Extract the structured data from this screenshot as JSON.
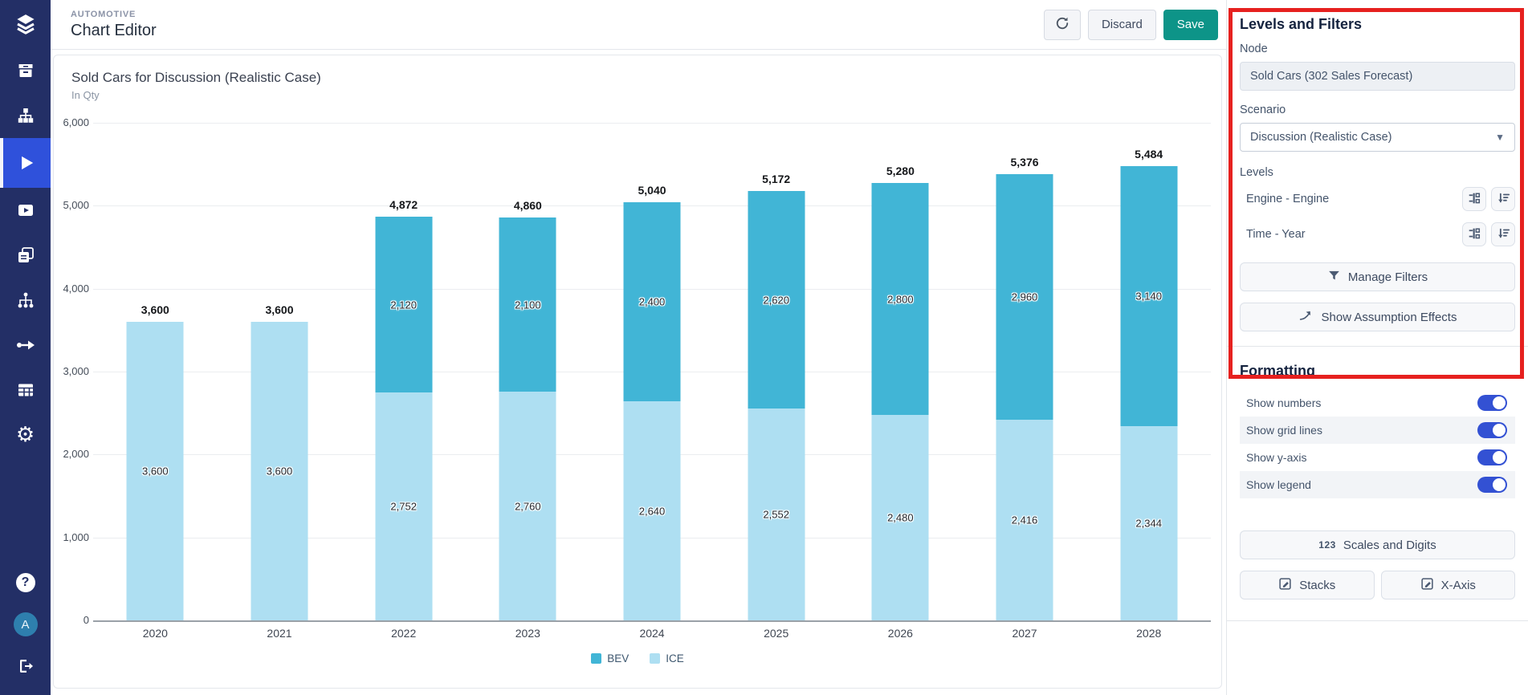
{
  "header": {
    "app_label": "AUTOMOTIVE",
    "title": "Chart Editor",
    "refresh_icon": "refresh-icon",
    "discard_label": "Discard",
    "save_label": "Save",
    "save_color": "#0d9488"
  },
  "sidebar": {
    "background_color": "#232f66",
    "active_color": "#2f51db",
    "top_icons": [
      "logo",
      "archive",
      "sitemap",
      "run",
      "video",
      "pages",
      "network",
      "flow",
      "table",
      "gear"
    ],
    "active_icon": "run",
    "bottom_icons": [
      "help",
      "avatar",
      "logout"
    ],
    "avatar_initial": "A"
  },
  "chart_data": {
    "type": "bar",
    "stacked": true,
    "title": "Sold Cars for Discussion (Realistic Case)",
    "subtitle": "In Qty",
    "categories": [
      "2020",
      "2021",
      "2022",
      "2023",
      "2024",
      "2025",
      "2026",
      "2027",
      "2028"
    ],
    "series": [
      {
        "name": "BEV",
        "color": "#41b5d6",
        "values": [
          0,
          0,
          2120,
          2100,
          2400,
          2620,
          2800,
          2960,
          3140
        ]
      },
      {
        "name": "ICE",
        "color": "#aedff2",
        "values": [
          3600,
          3600,
          2752,
          2760,
          2640,
          2552,
          2480,
          2416,
          2344
        ]
      }
    ],
    "totals": [
      3600,
      3600,
      4872,
      4860,
      5040,
      5172,
      5280,
      5376,
      5484
    ],
    "ylim": [
      0,
      6000
    ],
    "ytick_step": 1000,
    "grid": true,
    "show_numbers": true,
    "show_y_axis": true,
    "legend_position": "bottom"
  },
  "panel": {
    "highlight_color": "#e6211f",
    "title": "Levels and Filters",
    "node_label": "Node",
    "node_value": "Sold Cars (302 Sales Forecast)",
    "scenario_label": "Scenario",
    "scenario_value": "Discussion (Realistic Case)",
    "levels_label": "Levels",
    "levels": [
      "Engine - Engine",
      "Time - Year"
    ],
    "level_row_icons": [
      "level-settings-icon",
      "sort-descending-icon"
    ],
    "manage_filters_label": "Manage Filters",
    "show_assumption_effects_label": "Show Assumption Effects",
    "formatting": {
      "title": "Formatting",
      "toggles": [
        {
          "label": "Show numbers",
          "on": true,
          "striped": false
        },
        {
          "label": "Show grid lines",
          "on": true,
          "striped": true
        },
        {
          "label": "Show y-axis",
          "on": true,
          "striped": false
        },
        {
          "label": "Show legend",
          "on": true,
          "striped": true
        }
      ],
      "toggle_color": "#3351d3",
      "scales_icon_text": "123",
      "scales_button_label": "Scales and Digits",
      "stacks_button_label": "Stacks",
      "xaxis_button_label": "X-Axis"
    }
  }
}
